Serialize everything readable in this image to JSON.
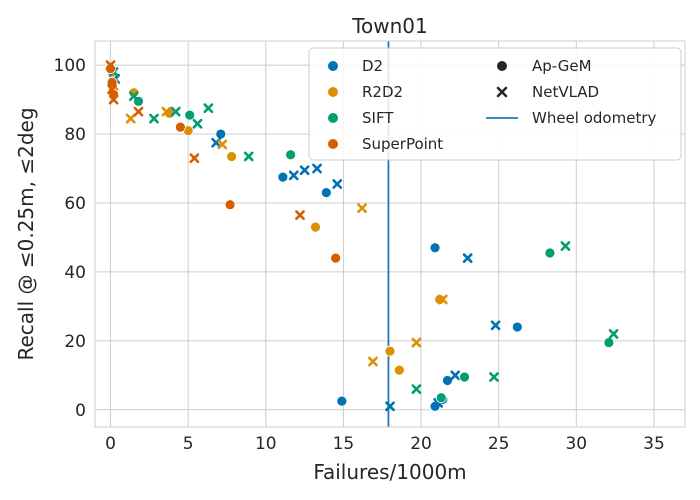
{
  "chart_data": {
    "type": "scatter",
    "title": "Town01",
    "xlabel": "Failures/1000m",
    "ylabel": "Recall @ ≤0.25m, ≤2deg",
    "xlim": [
      -1,
      37
    ],
    "ylim": [
      -5,
      107
    ],
    "xticks": [
      0,
      5,
      10,
      15,
      20,
      25,
      30,
      35
    ],
    "yticks": [
      0,
      20,
      40,
      60,
      80,
      100
    ],
    "grid": true,
    "legend_position": "top-right",
    "colors": {
      "D2": "#0173b2",
      "R2D2": "#de8f05",
      "SIFT": "#029e73",
      "SuperPoint": "#d55e00",
      "marker_legend": "#262626",
      "wheel_odometry": "#1f77b4",
      "grid": "#cccccc",
      "axes_edge": "#cccccc"
    },
    "hue_legend": [
      "D2",
      "R2D2",
      "SIFT",
      "SuperPoint"
    ],
    "style_legend": [
      {
        "label": "Ap-GeM",
        "marker": "circle"
      },
      {
        "label": "NetVLAD",
        "marker": "x"
      }
    ],
    "reference_line": {
      "label": "Wheel odometry",
      "x": 17.9
    },
    "series": [
      {
        "name": "D2",
        "method": "Ap-GeM",
        "marker": "circle",
        "x": [
          0.2,
          7.1,
          11.1,
          13.9,
          14.9,
          20.9,
          20.9,
          21.4,
          21.7,
          26.2
        ],
        "y": [
          97,
          80,
          67.5,
          63,
          2.5,
          47,
          1,
          3,
          8.5,
          24
        ]
      },
      {
        "name": "D2",
        "method": "NetVLAD",
        "marker": "x",
        "x": [
          0.3,
          6.8,
          11.8,
          12.5,
          13.3,
          14.6,
          18.0,
          21.1,
          22.2,
          23.0,
          24.8
        ],
        "y": [
          96,
          77.5,
          68,
          69.5,
          70,
          65.5,
          1,
          2,
          10,
          44,
          24.5
        ]
      },
      {
        "name": "R2D2",
        "method": "Ap-GeM",
        "marker": "circle",
        "x": [
          0.1,
          1.5,
          3.8,
          5.0,
          7.8,
          13.2,
          18.0,
          18.6,
          21.2
        ],
        "y": [
          98,
          92,
          86,
          81,
          73.5,
          53,
          17,
          11.5,
          32
        ]
      },
      {
        "name": "R2D2",
        "method": "NetVLAD",
        "marker": "x",
        "x": [
          0.2,
          1.3,
          3.6,
          7.2,
          16.2,
          16.9,
          19.7,
          21.4
        ],
        "y": [
          94,
          84.5,
          86.5,
          77,
          58.5,
          14,
          19.5,
          32
        ]
      },
      {
        "name": "SIFT",
        "method": "Ap-GeM",
        "marker": "circle",
        "x": [
          1.8,
          5.1,
          11.6,
          21.3,
          22.8,
          28.3,
          32.1
        ],
        "y": [
          89.5,
          85.5,
          74,
          3.5,
          9.5,
          45.5,
          19.5
        ]
      },
      {
        "name": "SIFT",
        "method": "NetVLAD",
        "marker": "x",
        "x": [
          0.2,
          1.5,
          2.8,
          4.2,
          5.6,
          6.3,
          8.9,
          19.7,
          24.7,
          29.3,
          32.4
        ],
        "y": [
          98,
          91,
          84.5,
          86.5,
          83,
          87.5,
          73.5,
          6,
          9.5,
          47.5,
          22
        ]
      },
      {
        "name": "SuperPoint",
        "method": "Ap-GeM",
        "marker": "circle",
        "x": [
          0.0,
          0.1,
          0.2,
          4.5,
          7.7,
          14.5
        ],
        "y": [
          99,
          95,
          91.5,
          82,
          59.5,
          44
        ]
      },
      {
        "name": "SuperPoint",
        "method": "NetVLAD",
        "marker": "x",
        "x": [
          0.0,
          0.1,
          0.2,
          1.8,
          5.4,
          12.2
        ],
        "y": [
          100,
          93,
          90,
          86.5,
          73,
          56.5
        ]
      }
    ]
  }
}
